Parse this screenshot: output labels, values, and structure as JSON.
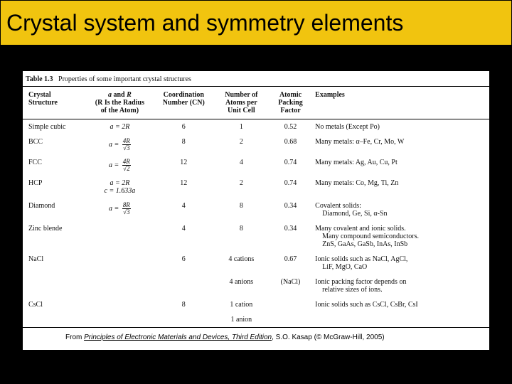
{
  "slide": {
    "title": "Crystal system and symmetry elements",
    "title_bg": "#f1c40f",
    "bg": "#000000"
  },
  "table": {
    "caption_label": "Table 1.3",
    "caption_text": "Properties of some important crystal structures",
    "headers": {
      "h1a": "Crystal",
      "h1b": "Structure",
      "h2a": "a and R",
      "h2b": "(R Is the Radius",
      "h2c": "of the Atom)",
      "h3a": "Coordination",
      "h3b": "Number (CN)",
      "h4a": "Number of",
      "h4b": "Atoms per",
      "h4c": "Unit Cell",
      "h5a": "Atomic",
      "h5b": "Packing",
      "h5c": "Factor",
      "h6": "Examples"
    },
    "rows": [
      {
        "structure": "Simple cubic",
        "rel_prefix": "a = 2R",
        "rel_frac_num": "",
        "rel_frac_den": "",
        "cn": "6",
        "atoms": "1",
        "apf": "0.52",
        "ex": "No metals (Except Po)"
      },
      {
        "structure": "BCC",
        "rel_prefix": "a =",
        "rel_frac_num": "4R",
        "rel_frac_den": "√3",
        "cn": "8",
        "atoms": "2",
        "apf": "0.68",
        "ex": "Many metals: α–Fe, Cr, Mo, W"
      },
      {
        "structure": "FCC",
        "rel_prefix": "a =",
        "rel_frac_num": "4R",
        "rel_frac_den": "√2",
        "cn": "12",
        "atoms": "4",
        "apf": "0.74",
        "ex": "Many metals: Ag, Au, Cu, Pt"
      },
      {
        "structure": "HCP",
        "rel_prefix": "a = 2R",
        "rel_frac_num": "",
        "rel_frac_den": "",
        "cn": "12",
        "atoms": "2",
        "apf": "0.74",
        "ex": "Many metals: Co, Mg, Ti, Zn",
        "note": "c = 1.633a"
      },
      {
        "structure": "Diamond",
        "rel_prefix": "a =",
        "rel_frac_num": "8R",
        "rel_frac_den": "√3",
        "cn": "4",
        "atoms": "8",
        "apf": "0.34",
        "ex": "Covalent solids:",
        "ex2": "Diamond, Ge, Si, α-Sn"
      },
      {
        "structure": "Zinc blende",
        "rel_prefix": "",
        "rel_frac_num": "",
        "rel_frac_den": "",
        "cn": "4",
        "atoms": "8",
        "apf": "0.34",
        "ex": "Many covalent and ionic solids.",
        "ex2": "Many compound semiconductors.",
        "ex3": "ZnS, GaAs, GaSb, InAs, InSb"
      },
      {
        "structure": "NaCl",
        "rel_prefix": "",
        "rel_frac_num": "",
        "rel_frac_den": "",
        "cn": "6",
        "atoms": "4 cations",
        "apf": "0.67",
        "ex": "Ionic solids such as NaCl, AgCl,",
        "ex2": "LiF, MgO, CaO"
      },
      {
        "structure": "",
        "rel_prefix": "",
        "rel_frac_num": "",
        "rel_frac_den": "",
        "cn": "",
        "atoms": "4 anions",
        "apf": "(NaCl)",
        "ex": "Ionic packing factor depends on",
        "ex2": "relative sizes of ions."
      },
      {
        "structure": "CsCl",
        "rel_prefix": "",
        "rel_frac_num": "",
        "rel_frac_den": "",
        "cn": "8",
        "atoms": "1 cation",
        "apf": "",
        "ex": "Ionic solids such as CsCl, CsBr, CsI"
      },
      {
        "structure": "",
        "rel_prefix": "",
        "rel_frac_num": "",
        "rel_frac_den": "",
        "cn": "",
        "atoms": "1 anion",
        "apf": "",
        "ex": ""
      }
    ]
  },
  "source": {
    "prefix": "From ",
    "book": "Principles of Electronic Materials and Devices, Third Edition",
    "suffix": ", S.O. Kasap (© McGraw-Hill, 2005)"
  }
}
